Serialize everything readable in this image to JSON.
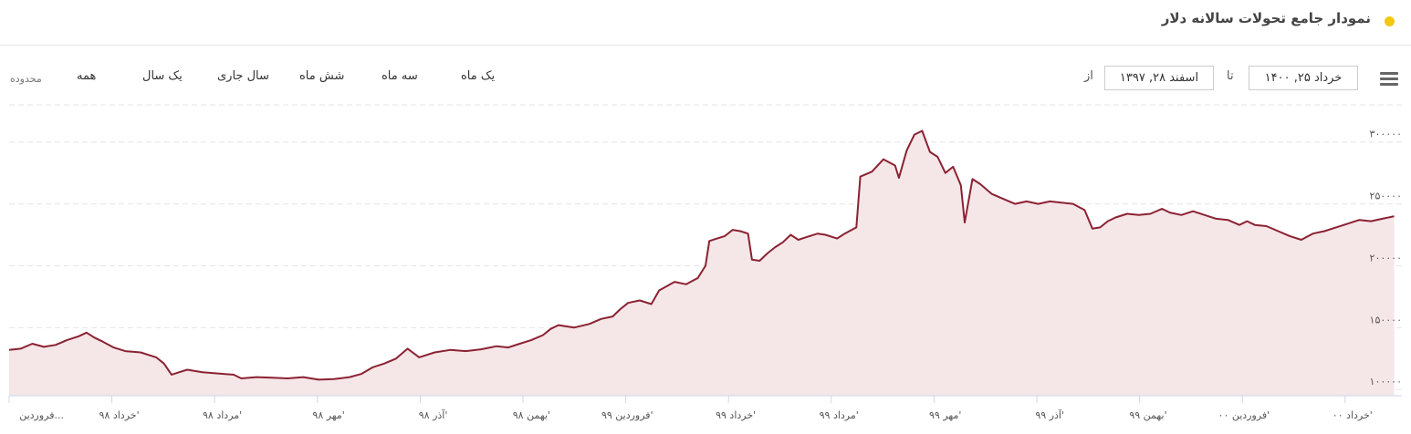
{
  "header": {
    "title": "نمودار جامع تحولات سالانه دلار",
    "dot_color": "#f2c811"
  },
  "range_selector": {
    "label": "محدوده",
    "buttons": [
      "همه",
      "یک سال",
      "سال جاری",
      "شش ماه",
      "سه ماه",
      "یک ماه"
    ]
  },
  "date_inputs": {
    "from_label": "از",
    "from_value": "اسفند ۲۸, ۱۳۹۷",
    "to_label": "تا",
    "to_value": "خرداد ۲۵, ۱۴۰۰"
  },
  "chart_data": {
    "type": "area",
    "line_color": "#8b2232",
    "fill_color": "#f5e6e8",
    "ylim": [
      95000,
      330000
    ],
    "yticks": [
      {
        "value": 100000,
        "label": "۱۰۰۰۰۰"
      },
      {
        "value": 150000,
        "label": "۱۵۰۰۰۰"
      },
      {
        "value": 200000,
        "label": "۲۰۰۰۰۰"
      },
      {
        "value": 250000,
        "label": "۲۵۰۰۰۰"
      },
      {
        "value": 300000,
        "label": "۳۰۰۰۰۰"
      }
    ],
    "grid": true,
    "x_ticks": [
      "فروردین...",
      "خرداد ۹۸'",
      "مرداد ۹۸'",
      "مهر ۹۸'",
      "آذر ۹۸'",
      "بهمن ۹۸'",
      "فروردین ۹۹'",
      "خرداد ۹۹'",
      "مرداد ۹۹'",
      "مهر ۹۹'",
      "آذر ۹۹'",
      "بهمن ۹۹'",
      "فروردین ۰۰'",
      "خرداد ۰۰'"
    ],
    "series": [
      {
        "points": [
          [
            0,
            132000
          ],
          [
            0.15,
            133000
          ],
          [
            0.3,
            137000
          ],
          [
            0.45,
            134500
          ],
          [
            0.6,
            136000
          ],
          [
            0.75,
            140000
          ],
          [
            0.9,
            143000
          ],
          [
            1.0,
            146000
          ],
          [
            1.1,
            142000
          ],
          [
            1.2,
            139000
          ],
          [
            1.35,
            134000
          ],
          [
            1.5,
            131000
          ],
          [
            1.7,
            130000
          ],
          [
            1.9,
            126000
          ],
          [
            2.0,
            121000
          ],
          [
            2.1,
            112000
          ],
          [
            2.2,
            114000
          ],
          [
            2.3,
            116000
          ],
          [
            2.5,
            114000
          ],
          [
            2.7,
            113000
          ],
          [
            2.9,
            112000
          ],
          [
            3.0,
            109000
          ],
          [
            3.2,
            110000
          ],
          [
            3.4,
            109500
          ],
          [
            3.6,
            109000
          ],
          [
            3.8,
            110000
          ],
          [
            4.0,
            108000
          ],
          [
            4.2,
            108500
          ],
          [
            4.4,
            110000
          ],
          [
            4.55,
            112500
          ],
          [
            4.7,
            118000
          ],
          [
            4.85,
            121000
          ],
          [
            5.0,
            125000
          ],
          [
            5.15,
            133000
          ],
          [
            5.3,
            126000
          ],
          [
            5.5,
            130000
          ],
          [
            5.7,
            132000
          ],
          [
            5.9,
            131000
          ],
          [
            6.1,
            132500
          ],
          [
            6.3,
            135000
          ],
          [
            6.45,
            134000
          ],
          [
            6.6,
            137000
          ],
          [
            6.75,
            140000
          ],
          [
            6.9,
            144000
          ],
          [
            7.0,
            149000
          ],
          [
            7.1,
            152000
          ],
          [
            7.3,
            150000
          ],
          [
            7.5,
            153000
          ],
          [
            7.65,
            157000
          ],
          [
            7.8,
            159000
          ],
          [
            7.9,
            165000
          ],
          [
            8.0,
            170000
          ],
          [
            8.15,
            172000
          ],
          [
            8.3,
            169000
          ],
          [
            8.4,
            180000
          ],
          [
            8.6,
            187000
          ],
          [
            8.75,
            185000
          ],
          [
            8.9,
            190000
          ],
          [
            9.0,
            200000
          ],
          [
            9.05,
            220000
          ],
          [
            9.15,
            222000
          ],
          [
            9.25,
            224000
          ],
          [
            9.35,
            229000
          ],
          [
            9.45,
            228000
          ],
          [
            9.55,
            226000
          ],
          [
            9.6,
            205000
          ],
          [
            9.7,
            204000
          ],
          [
            9.8,
            210000
          ],
          [
            9.9,
            215000
          ],
          [
            10.0,
            219000
          ],
          [
            10.1,
            225000
          ],
          [
            10.2,
            221000
          ],
          [
            10.3,
            223000
          ],
          [
            10.45,
            226000
          ],
          [
            10.55,
            225000
          ],
          [
            10.7,
            222000
          ],
          [
            10.8,
            226000
          ],
          [
            10.95,
            231000
          ],
          [
            11.0,
            272000
          ],
          [
            11.15,
            276000
          ],
          [
            11.3,
            286000
          ],
          [
            11.45,
            281000
          ],
          [
            11.5,
            271000
          ],
          [
            11.6,
            293000
          ],
          [
            11.7,
            306000
          ],
          [
            11.8,
            309000
          ],
          [
            11.9,
            292000
          ],
          [
            12.0,
            288000
          ],
          [
            12.1,
            275000
          ],
          [
            12.2,
            280000
          ],
          [
            12.3,
            265000
          ],
          [
            12.35,
            235000
          ],
          [
            12.45,
            270000
          ],
          [
            12.55,
            266000
          ],
          [
            12.7,
            258000
          ],
          [
            12.85,
            254000
          ],
          [
            13.0,
            250000
          ],
          [
            13.15,
            252000
          ],
          [
            13.3,
            250000
          ],
          [
            13.45,
            252000
          ],
          [
            13.6,
            251000
          ],
          [
            13.75,
            250000
          ],
          [
            13.9,
            245000
          ],
          [
            14.0,
            230000
          ],
          [
            14.1,
            231000
          ],
          [
            14.2,
            236000
          ],
          [
            14.3,
            239000
          ],
          [
            14.45,
            242000
          ],
          [
            14.6,
            241000
          ],
          [
            14.75,
            242000
          ],
          [
            14.9,
            246000
          ],
          [
            15.0,
            243000
          ],
          [
            15.15,
            241000
          ],
          [
            15.3,
            244000
          ],
          [
            15.45,
            241000
          ],
          [
            15.6,
            238000
          ],
          [
            15.75,
            237000
          ],
          [
            15.9,
            233000
          ],
          [
            16.0,
            236000
          ],
          [
            16.1,
            233000
          ],
          [
            16.25,
            232000
          ],
          [
            16.4,
            228000
          ],
          [
            16.55,
            224000
          ],
          [
            16.7,
            221000
          ],
          [
            16.85,
            226000
          ],
          [
            17.0,
            228000
          ],
          [
            17.15,
            231000
          ],
          [
            17.3,
            234000
          ],
          [
            17.45,
            237000
          ],
          [
            17.6,
            236000
          ],
          [
            17.75,
            238000
          ],
          [
            17.9,
            240000
          ]
        ]
      }
    ]
  }
}
